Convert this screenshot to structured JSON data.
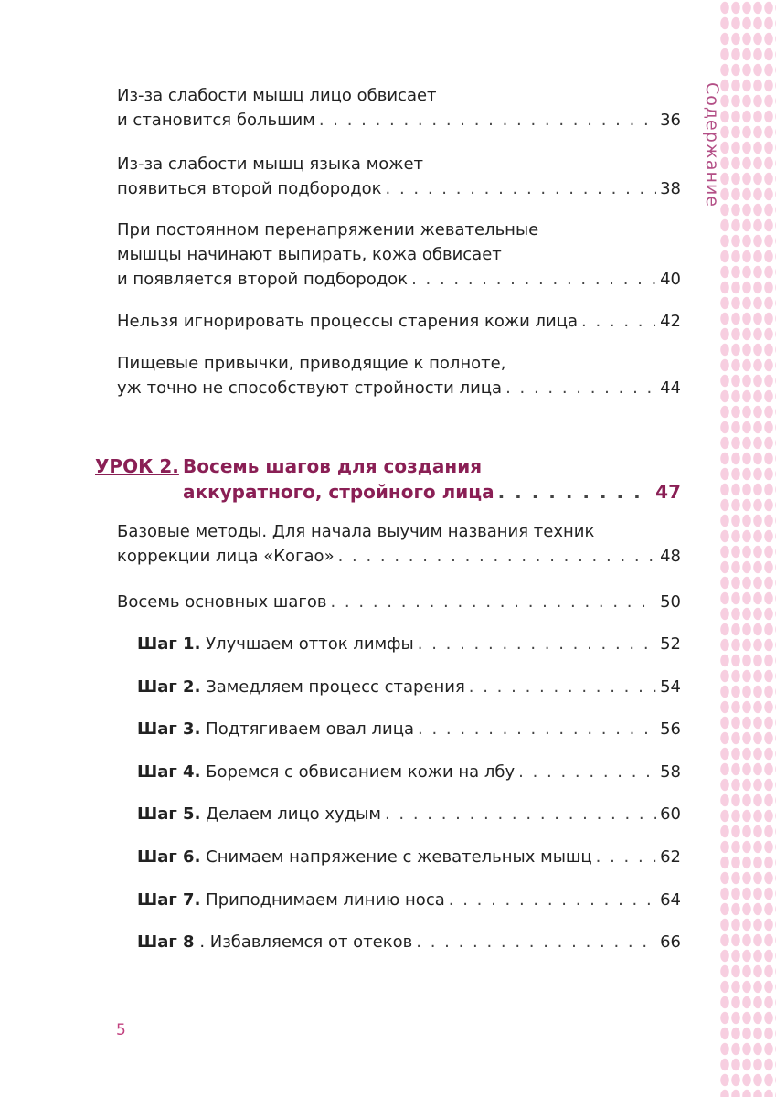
{
  "side_title": "Содержание",
  "entries": [
    {
      "lines": [
        "Из-за слабости мышц лицо обвисает",
        "и становится большим"
      ],
      "page": "36"
    },
    {
      "lines": [
        "Из-за слабости мышц языка может",
        "появиться второй подбородок"
      ],
      "page": "38"
    },
    {
      "lines": [
        "При постоянном перенапряжении жевательные",
        "мышцы начинают выпирать, кожа обвисает",
        "и появляется второй подбородок"
      ],
      "page": "40"
    },
    {
      "lines": [
        "Нельзя игнорировать процессы старения кожи лица"
      ],
      "page": "42"
    },
    {
      "lines": [
        "Пищевые привычки, приводящие к полноте,",
        "уж точно не способствуют стройности лица"
      ],
      "page": "44"
    }
  ],
  "lesson": {
    "label": "УРОК 2.",
    "lines": [
      "Восемь шагов для создания",
      "аккуратного, стройного лица"
    ],
    "page": "47"
  },
  "lesson_entries": [
    {
      "lines": [
        "Базовые методы. Для начала выучим названия техник",
        "коррекции лица «Когао»"
      ],
      "page": "48"
    },
    {
      "lines": [
        "Восемь основных шагов"
      ],
      "page": "50"
    }
  ],
  "steps": [
    {
      "label": "Шаг 1.",
      "title": "Улучшаем отток лимфы",
      "page": "52"
    },
    {
      "label": "Шаг 2.",
      "title": "Замедляем процесс старения",
      "page": "54"
    },
    {
      "label": "Шаг 3.",
      "title": "Подтягиваем овал лица",
      "page": "56"
    },
    {
      "label": "Шаг 4.",
      "title": "Боремся с обвисанием кожи на лбу",
      "page": "58"
    },
    {
      "label": "Шаг 5.",
      "title": "Делаем лицо худым",
      "page": "60"
    },
    {
      "label": "Шаг 6.",
      "title": "Снимаем напряжение с жевательных мышц",
      "page": "62"
    },
    {
      "label": "Шаг 7.",
      "title": "Приподнимаем линию носа",
      "page": "64"
    },
    {
      "label": "Шаг 8",
      "title": ". Избавляемся от отеков",
      "page": "66"
    }
  ],
  "page_number": "5",
  "colors": {
    "accent": "#8a1f55",
    "pink": "#c2417f",
    "border_dots": "#f6c9dc"
  }
}
